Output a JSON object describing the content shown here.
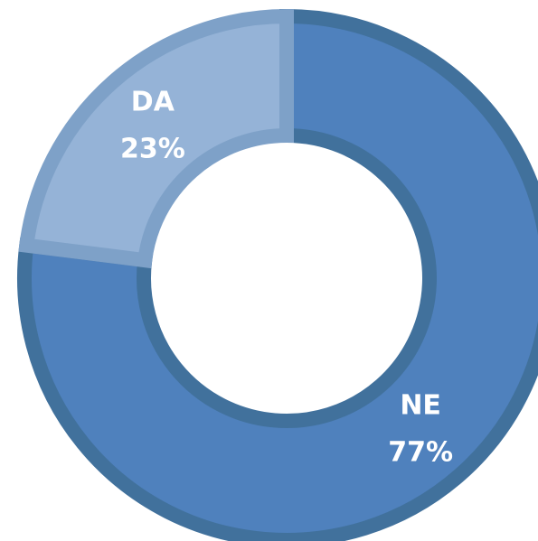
{
  "chart_data": {
    "type": "donut",
    "categories": [
      "NE",
      "DA"
    ],
    "values": [
      77,
      23
    ],
    "value_labels": [
      "77%",
      "23%"
    ],
    "colors": [
      "#4f81bd",
      "#95b3d7"
    ],
    "border_colors": [
      "#41719c",
      "#7ea1c8"
    ]
  }
}
